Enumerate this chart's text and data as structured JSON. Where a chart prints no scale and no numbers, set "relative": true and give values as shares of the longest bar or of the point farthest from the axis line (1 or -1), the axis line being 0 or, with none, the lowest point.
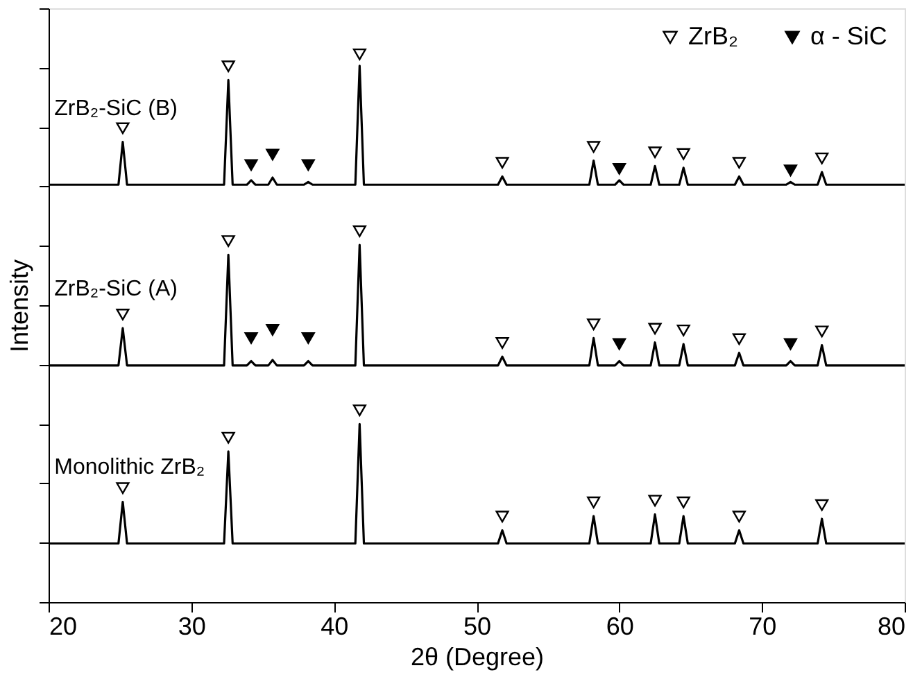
{
  "chart_data": {
    "type": "line",
    "relative": true,
    "xlabel": "2θ (Degree)",
    "ylabel": "Intensity",
    "xlim": [
      20,
      80
    ],
    "xticks": [
      20,
      30,
      40,
      50,
      60,
      70,
      80
    ],
    "grid": false,
    "legend": "top right",
    "line_style": "solid",
    "series": [
      {
        "name": "ZrB₂-SiC (B)",
        "color": "#000000",
        "x": [
          20,
          24.9,
          25.2,
          25.5,
          32.3,
          32.6,
          32.9,
          33.9,
          34.2,
          34.5,
          35.4,
          35.7,
          36.0,
          37.9,
          38.2,
          38.5,
          41.5,
          41.8,
          42.1,
          51.5,
          51.8,
          52.1,
          57.9,
          58.2,
          58.5,
          59.7,
          60.0,
          60.3,
          62.2,
          62.5,
          62.8,
          64.2,
          64.5,
          64.8,
          68.1,
          68.4,
          68.7,
          71.7,
          72.0,
          72.3,
          73.9,
          74.2,
          74.5,
          80
        ],
        "values": [
          0.762,
          0.762,
          0.84,
          0.762,
          0.762,
          0.953,
          0.762,
          0.762,
          0.77,
          0.762,
          0.762,
          0.775,
          0.762,
          0.762,
          0.767,
          0.762,
          0.762,
          0.979,
          0.762,
          0.762,
          0.777,
          0.762,
          0.762,
          0.806,
          0.762,
          0.762,
          0.77,
          0.762,
          0.762,
          0.796,
          0.762,
          0.762,
          0.793,
          0.762,
          0.762,
          0.777,
          0.762,
          0.762,
          0.767,
          0.762,
          0.762,
          0.785,
          0.762,
          0.762
        ]
      },
      {
        "name": "ZrB₂-SiC (A)",
        "color": "#000000",
        "x": [
          20,
          24.9,
          25.2,
          25.5,
          32.3,
          32.6,
          32.9,
          33.9,
          34.2,
          34.5,
          35.4,
          35.7,
          36.0,
          37.9,
          38.2,
          38.5,
          41.5,
          41.8,
          42.1,
          51.5,
          51.8,
          52.1,
          57.9,
          58.2,
          58.5,
          59.7,
          60.0,
          60.3,
          62.2,
          62.5,
          62.8,
          64.2,
          64.5,
          64.8,
          68.1,
          68.4,
          68.7,
          71.7,
          72.0,
          72.3,
          73.9,
          74.2,
          74.5,
          80
        ],
        "values": [
          0.432,
          0.432,
          0.5,
          0.432,
          0.432,
          0.634,
          0.432,
          0.432,
          0.44,
          0.432,
          0.432,
          0.442,
          0.432,
          0.432,
          0.44,
          0.432,
          0.432,
          0.652,
          0.432,
          0.432,
          0.448,
          0.432,
          0.432,
          0.482,
          0.432,
          0.432,
          0.44,
          0.432,
          0.432,
          0.474,
          0.432,
          0.432,
          0.471,
          0.432,
          0.432,
          0.455,
          0.432,
          0.432,
          0.44,
          0.432,
          0.432,
          0.469,
          0.432,
          0.432
        ]
      },
      {
        "name": "Monolithic ZrB₂",
        "color": "#000000",
        "x": [
          20,
          24.9,
          25.2,
          25.5,
          32.3,
          32.6,
          32.9,
          41.5,
          41.8,
          42.1,
          51.5,
          51.8,
          52.1,
          57.9,
          58.2,
          58.5,
          62.2,
          62.5,
          62.8,
          64.2,
          64.5,
          64.8,
          68.1,
          68.4,
          68.7,
          73.9,
          74.2,
          74.5,
          80
        ],
        "values": [
          0.107,
          0.107,
          0.183,
          0.107,
          0.107,
          0.275,
          0.107,
          0.107,
          0.325,
          0.107,
          0.107,
          0.131,
          0.107,
          0.107,
          0.157,
          0.107,
          0.107,
          0.16,
          0.107,
          0.107,
          0.157,
          0.107,
          0.107,
          0.131,
          0.107,
          0.107,
          0.152,
          0.107,
          0.107
        ]
      },
      {
        "name": "ZrB₂",
        "color": "#000000",
        "type": "scatter",
        "marker": "triangle",
        "x": [
          25.2,
          32.6,
          41.8,
          51.8,
          58.2,
          62.5,
          64.5,
          68.4,
          74.2,
          25.2,
          32.6,
          41.8,
          51.8,
          58.2,
          62.5,
          64.5,
          68.4,
          74.2,
          25.2,
          32.6,
          41.8,
          51.8,
          58.2,
          62.5,
          64.5,
          68.4,
          74.2
        ],
        "values": [
          0.865,
          0.978,
          1.0,
          0.802,
          0.831,
          0.821,
          0.818,
          0.802,
          0.81,
          0.525,
          0.659,
          0.677,
          0.473,
          0.507,
          0.499,
          0.496,
          0.48,
          0.494,
          0.208,
          0.3,
          0.35,
          0.156,
          0.182,
          0.185,
          0.182,
          0.156,
          0.177
        ]
      },
      {
        "name": "α - SiC",
        "color": "#000000",
        "type": "scatter",
        "marker": "triangle",
        "x": [
          34.2,
          35.7,
          38.2,
          60.0,
          72.0,
          34.2,
          35.7,
          38.2,
          60.0,
          72.0
        ],
        "values": [
          0.798,
          0.817,
          0.798,
          0.791,
          0.788,
          0.482,
          0.497,
          0.482,
          0.471,
          0.471
        ]
      }
    ]
  }
}
